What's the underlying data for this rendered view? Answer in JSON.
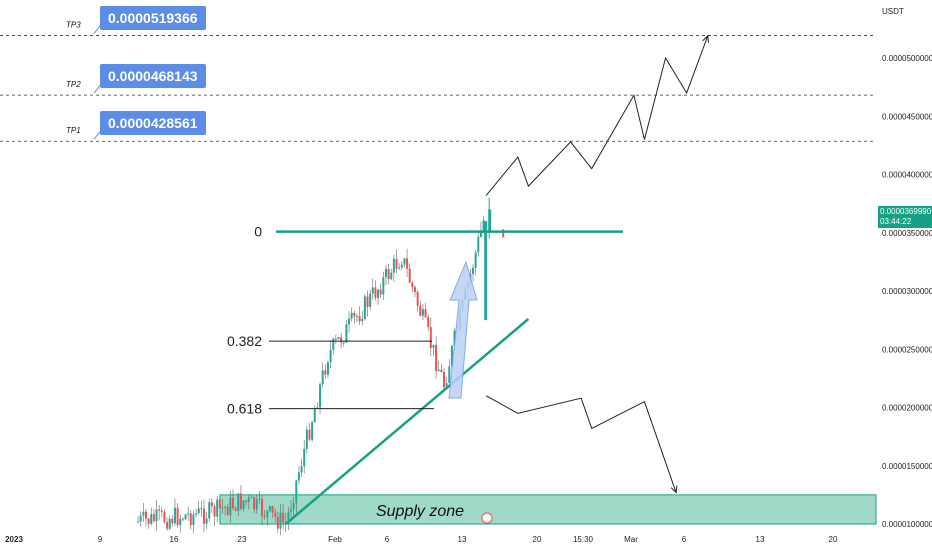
{
  "chart_data": {
    "type": "candlestick",
    "currency": "USDT",
    "y_axis": {
      "range": [
        1e-05,
        5.25e-05
      ],
      "tick_labels": [
        "0.0000500000",
        "0.0000450000",
        "0.0000400000",
        "0.0000350000",
        "0.0000300000",
        "0.0000250000",
        "0.0000200000",
        "0.0000150000",
        "0.0000100000"
      ]
    },
    "x_axis": {
      "tick_labels": [
        "2023",
        "9",
        "16",
        "23",
        "Feb",
        "6",
        "13",
        "20",
        "15:30",
        "Mar",
        "6",
        "13",
        "20"
      ]
    },
    "current_price": {
      "value": "0.0000369990",
      "countdown": "03:44:22"
    },
    "targets": [
      {
        "name": "TP3",
        "price": "0.0000519366"
      },
      {
        "name": "TP2",
        "price": "0.0000468143"
      },
      {
        "name": "TP1",
        "price": "0.0000428561"
      }
    ],
    "fibonacci": [
      {
        "level": "0",
        "price": 3.51e-05
      },
      {
        "level": "0.382",
        "price": 2.57e-05
      },
      {
        "level": "0.618",
        "price": 1.99e-05
      }
    ],
    "supply_zone": {
      "label": "Supply zone",
      "price_top": 1.25e-05,
      "price_bottom": 1e-05
    },
    "trendline": {
      "from": {
        "date": "Jan 26",
        "price": 1e-05
      },
      "to": {
        "date": "Feb 18",
        "price": 2.76e-05
      }
    },
    "candles_summary": [
      {
        "date": "Jan 12",
        "close": 1.02e-05
      },
      {
        "date": "Jan 19",
        "close": 1.1e-05
      },
      {
        "date": "Jan 22",
        "close": 1.2e-05
      },
      {
        "date": "Jan 26",
        "close": 1e-05
      },
      {
        "date": "Jan 30",
        "close": 2.45e-05
      },
      {
        "date": "Feb 6",
        "close": 3.3e-05
      },
      {
        "date": "Feb 10",
        "close": 2.2e-05
      },
      {
        "date": "Feb 14",
        "close": 3.7e-05
      }
    ],
    "projection_up": [
      {
        "date": "Feb 14",
        "price": 3.82e-05
      },
      {
        "date": "Feb 17",
        "price": 4.15e-05
      },
      {
        "date": "Feb 18",
        "price": 3.9e-05
      },
      {
        "date": "Feb 22",
        "price": 4.28e-05
      },
      {
        "date": "Feb 24",
        "price": 4.05e-05
      },
      {
        "date": "Feb 28",
        "price": 4.68e-05
      },
      {
        "date": "Mar 1",
        "price": 4.3e-05
      },
      {
        "date": "Mar 3",
        "price": 5e-05
      },
      {
        "date": "Mar 5",
        "price": 4.7e-05
      },
      {
        "date": "Mar 7",
        "price": 5.19e-05
      }
    ],
    "projection_down": [
      {
        "date": "Feb 14",
        "price": 2.1e-05
      },
      {
        "date": "Feb 17",
        "price": 1.95e-05
      },
      {
        "date": "Feb 23",
        "price": 2.08e-05
      },
      {
        "date": "Feb 24",
        "price": 1.82e-05
      },
      {
        "date": "Mar 1",
        "price": 2.05e-05
      },
      {
        "date": "Mar 4",
        "price": 1.27e-05
      }
    ],
    "grid": false
  }
}
